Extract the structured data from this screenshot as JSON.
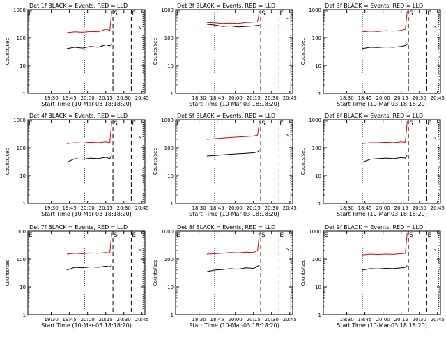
{
  "figure": {
    "rate_label": "Counts/sec",
    "start_marker": "S",
    "end_marker": "E",
    "colors": {
      "events": "#000000",
      "lld": "#e00000",
      "axes": "#000000",
      "background": "#ffffff"
    }
  },
  "chart_data": [
    {
      "type": "line",
      "title": "Det 1f BLACK = Events, RED = LLD",
      "xlabel": "Start Time (10-Mar-03 18:18:20)",
      "ylabel": "Counts/sec",
      "yscale": "log",
      "ylim": [
        1,
        1000
      ],
      "yticks": [
        "1",
        "10",
        "100",
        "1000"
      ],
      "xticks": [
        "19:30",
        "19:45",
        "20:00",
        "20:15",
        "20:30",
        "20:45"
      ],
      "xlim": [
        18.0,
        21.0
      ],
      "x": [
        19.0,
        19.2,
        19.4,
        19.6,
        19.8,
        20.0,
        20.1,
        20.15,
        20.2,
        20.22,
        20.25,
        20.3,
        20.38,
        20.5,
        20.55,
        20.6,
        20.7,
        20.75,
        20.8,
        20.85,
        20.9
      ],
      "series": [
        {
          "name": "Events",
          "color": "#000000",
          "values": [
            40,
            45,
            42,
            48,
            45,
            55,
            50,
            60,
            null,
            null,
            null,
            null,
            null,
            null,
            null,
            null,
            null,
            null,
            null,
            null,
            null
          ]
        },
        {
          "name": "LLD",
          "color": "#e00000",
          "values": [
            150,
            160,
            155,
            165,
            160,
            200,
            180,
            900,
            null,
            null,
            null,
            null,
            null,
            null,
            null,
            null,
            null,
            null,
            null,
            250,
            200
          ]
        }
      ],
      "markers": {
        "dotted": 19.45,
        "dashed": [
          20.18,
          20.65
        ],
        "dotted_end": 20.95
      }
    },
    {
      "type": "line",
      "title": "Det 2f BLACK = Events, RED = LLD",
      "xlabel": "Start Time (10-Mar-03 18:18:20)",
      "ylabel": "Counts/sec",
      "yscale": "log",
      "ylim": [
        1,
        1000
      ],
      "yticks": [
        "1",
        "10",
        "100",
        "1000"
      ],
      "xticks": [
        "18:30",
        "18:45",
        "20:00",
        "20:15",
        "20:30",
        "20:45"
      ],
      "xlim": [
        18.0,
        21.0
      ],
      "x": [
        18.8,
        19.0,
        19.2,
        19.4,
        19.6,
        19.8,
        20.0,
        20.1,
        20.15,
        20.2,
        20.22,
        20.25,
        20.3,
        20.38,
        20.5,
        20.55,
        20.6,
        20.7,
        20.75,
        20.8,
        20.85,
        20.9
      ],
      "series": [
        {
          "name": "Events",
          "color": "#000000",
          "values": [
            300,
            280,
            250,
            260,
            240,
            250,
            260,
            270,
            280,
            null,
            null,
            null,
            null,
            null,
            null,
            null,
            null,
            null,
            null,
            null,
            null,
            null
          ]
        },
        {
          "name": "LLD",
          "color": "#e00000",
          "values": [
            350,
            340,
            320,
            330,
            320,
            350,
            360,
            370,
            900,
            null,
            null,
            null,
            null,
            null,
            null,
            null,
            null,
            null,
            null,
            null,
            500,
            450
          ]
        }
      ],
      "markers": {
        "dotted": 19.0,
        "dashed": [
          20.18,
          20.65
        ],
        "dotted_end": 20.95
      }
    },
    {
      "type": "line",
      "title": "Det 3f BLACK = Events, RED = LLD",
      "xlabel": "Start Time (10-Mar-03 18:18:20)",
      "ylabel": "Counts/sec",
      "yscale": "log",
      "ylim": [
        1,
        1000
      ],
      "yticks": [
        "1",
        "10",
        "100",
        "1000"
      ],
      "xticks": [
        "18:30",
        "18:45",
        "20:00",
        "20:15",
        "20:30",
        "20:45"
      ],
      "xlim": [
        18.0,
        21.0
      ],
      "x": [
        19.0,
        19.2,
        19.4,
        19.6,
        19.8,
        20.0,
        20.1,
        20.15,
        20.2,
        20.22,
        20.25,
        20.3,
        20.38,
        20.5,
        20.55,
        20.6,
        20.7,
        20.75,
        20.8,
        20.85,
        20.9
      ],
      "series": [
        {
          "name": "Events",
          "color": "#000000",
          "values": [
            40,
            45,
            44,
            46,
            45,
            48,
            52,
            60,
            null,
            null,
            null,
            null,
            null,
            null,
            null,
            null,
            null,
            null,
            null,
            null,
            null
          ]
        },
        {
          "name": "LLD",
          "color": "#e00000",
          "values": [
            160,
            170,
            165,
            175,
            170,
            180,
            200,
            900,
            null,
            null,
            null,
            null,
            null,
            null,
            null,
            null,
            null,
            null,
            null,
            250,
            220
          ]
        }
      ],
      "markers": {
        "dotted": 19.0,
        "dashed": [
          20.18,
          20.65
        ],
        "dotted_end": 20.95
      }
    },
    {
      "type": "line",
      "title": "Det 4f BLACK = Events, RED = LLD",
      "xlabel": "Start Time (10-Mar-03 18:18:20)",
      "ylabel": "Counts/sec",
      "yscale": "log",
      "ylim": [
        1,
        1000
      ],
      "yticks": [
        "1",
        "10",
        "100",
        "1000"
      ],
      "xticks": [
        "19:30",
        "19:45",
        "20:00",
        "20:15",
        "20:30",
        "20:45"
      ],
      "xlim": [
        18.0,
        21.0
      ],
      "x": [
        19.0,
        19.2,
        19.4,
        19.6,
        19.8,
        20.0,
        20.1,
        20.15,
        20.2,
        20.22,
        20.25,
        20.3,
        20.38,
        20.5,
        20.55,
        20.6,
        20.7,
        20.75,
        20.8,
        20.85,
        20.9
      ],
      "series": [
        {
          "name": "Events",
          "color": "#000000",
          "values": [
            30,
            40,
            38,
            42,
            40,
            45,
            40,
            55,
            null,
            null,
            null,
            null,
            null,
            null,
            null,
            null,
            null,
            null,
            null,
            null,
            null
          ]
        },
        {
          "name": "LLD",
          "color": "#e00000",
          "values": [
            140,
            150,
            145,
            155,
            150,
            160,
            150,
            900,
            null,
            null,
            null,
            null,
            null,
            null,
            null,
            null,
            null,
            null,
            null,
            250,
            220
          ]
        }
      ],
      "markers": {
        "dotted": 19.45,
        "dashed": [
          20.18,
          20.65
        ],
        "dotted_end": 20.95
      }
    },
    {
      "type": "line",
      "title": "Det 5f BLACK = Events, RED = LLD",
      "xlabel": "Start Time (10-Mar-03 18:18:20)",
      "ylabel": "Counts/sec",
      "yscale": "log",
      "ylim": [
        1,
        1000
      ],
      "yticks": [
        "1",
        "10",
        "100",
        "1000"
      ],
      "xticks": [
        "18:30",
        "18:45",
        "20:00",
        "20:15",
        "20:30",
        "20:45"
      ],
      "xlim": [
        18.0,
        21.0
      ],
      "x": [
        18.8,
        19.0,
        19.2,
        19.4,
        19.6,
        19.8,
        20.0,
        20.1,
        20.15,
        20.2,
        20.22,
        20.25,
        20.3,
        20.38,
        20.5,
        20.55,
        20.6,
        20.7,
        20.75,
        20.8,
        20.85,
        20.9
      ],
      "series": [
        {
          "name": "Events",
          "color": "#000000",
          "values": [
            50,
            52,
            55,
            58,
            60,
            62,
            65,
            70,
            80,
            null,
            null,
            null,
            null,
            null,
            null,
            null,
            null,
            null,
            null,
            null,
            null,
            null
          ]
        },
        {
          "name": "LLD",
          "color": "#e00000",
          "values": [
            200,
            210,
            220,
            230,
            240,
            250,
            260,
            280,
            900,
            null,
            null,
            null,
            null,
            null,
            null,
            null,
            null,
            null,
            null,
            null,
            300,
            250
          ]
        }
      ],
      "markers": {
        "dotted": 19.0,
        "dashed": [
          20.18,
          20.65
        ],
        "dotted_end": 20.95
      }
    },
    {
      "type": "line",
      "title": "Det 6f BLACK = Events, RED = LLD",
      "xlabel": "Start Time (10-Mar-03 18:18:20)",
      "ylabel": "Counts/sec",
      "yscale": "log",
      "ylim": [
        1,
        1000
      ],
      "yticks": [
        "1",
        "10",
        "100",
        "1000"
      ],
      "xticks": [
        "18:30",
        "18:45",
        "20:00",
        "20:15",
        "20:30",
        "20:45"
      ],
      "xlim": [
        18.0,
        21.0
      ],
      "x": [
        19.0,
        19.2,
        19.4,
        19.6,
        19.8,
        20.0,
        20.1,
        20.15,
        20.2,
        20.22,
        20.25,
        20.3,
        20.38,
        20.5,
        20.55,
        20.6,
        20.7,
        20.75,
        20.8,
        20.85,
        20.9
      ],
      "series": [
        {
          "name": "Events",
          "color": "#000000",
          "values": [
            30,
            38,
            40,
            42,
            40,
            44,
            42,
            55,
            null,
            null,
            null,
            null,
            null,
            null,
            null,
            null,
            null,
            null,
            null,
            null,
            null
          ]
        },
        {
          "name": "LLD",
          "color": "#e00000",
          "values": [
            140,
            150,
            150,
            155,
            150,
            160,
            155,
            900,
            null,
            null,
            null,
            null,
            null,
            null,
            null,
            null,
            null,
            null,
            null,
            230,
            200
          ]
        }
      ],
      "markers": {
        "dotted": 19.0,
        "dashed": [
          20.18,
          20.65
        ],
        "dotted_end": 20.95
      }
    },
    {
      "type": "line",
      "title": "Det 7f BLACK = Events, RED = LLD",
      "xlabel": "Start Time (10-Mar-03 18:18:20)",
      "ylabel": "Counts/sec",
      "yscale": "log",
      "ylim": [
        1,
        1000
      ],
      "yticks": [
        "1",
        "10",
        "100",
        "1000"
      ],
      "xticks": [
        "19:30",
        "19:45",
        "20:00",
        "20:15",
        "20:30",
        "20:45"
      ],
      "xlim": [
        18.0,
        21.0
      ],
      "x": [
        19.0,
        19.2,
        19.4,
        19.6,
        19.8,
        20.0,
        20.1,
        20.15,
        20.2,
        20.22,
        20.25,
        20.3,
        20.38,
        20.5,
        20.55,
        20.6,
        20.7,
        20.75,
        20.8,
        20.85,
        20.9
      ],
      "series": [
        {
          "name": "Events",
          "color": "#000000",
          "values": [
            40,
            50,
            48,
            52,
            50,
            55,
            52,
            60,
            null,
            null,
            null,
            null,
            null,
            null,
            null,
            null,
            null,
            null,
            null,
            null,
            null
          ]
        },
        {
          "name": "LLD",
          "color": "#e00000",
          "values": [
            150,
            160,
            155,
            165,
            160,
            170,
            165,
            900,
            null,
            null,
            null,
            null,
            null,
            null,
            null,
            null,
            null,
            null,
            null,
            230,
            200
          ]
        }
      ],
      "markers": {
        "dotted": 19.45,
        "dashed": [
          20.18,
          20.65
        ],
        "dotted_end": 20.95
      }
    },
    {
      "type": "line",
      "title": "Det 8f BLACK = Events, RED = LLD",
      "xlabel": "Start Time (10-Mar-03 18:18:20)",
      "ylabel": "Counts/sec",
      "yscale": "log",
      "ylim": [
        1,
        1000
      ],
      "yticks": [
        "1",
        "10",
        "100",
        "1000"
      ],
      "xticks": [
        "18:30",
        "18:45",
        "20:00",
        "20:15",
        "20:30",
        "20:45"
      ],
      "xlim": [
        18.0,
        21.0
      ],
      "x": [
        18.8,
        19.0,
        19.2,
        19.4,
        19.6,
        19.8,
        20.0,
        20.1,
        20.15,
        20.2,
        20.22,
        20.25,
        20.3,
        20.38,
        20.5,
        20.55,
        20.6,
        20.7,
        20.75,
        20.8,
        20.85,
        20.9
      ],
      "series": [
        {
          "name": "Events",
          "color": "#000000",
          "values": [
            35,
            40,
            42,
            45,
            43,
            48,
            46,
            55,
            60,
            null,
            null,
            null,
            null,
            null,
            null,
            null,
            null,
            null,
            null,
            null,
            null,
            null
          ]
        },
        {
          "name": "LLD",
          "color": "#e00000",
          "values": [
            150,
            155,
            160,
            170,
            165,
            175,
            170,
            200,
            900,
            null,
            null,
            null,
            null,
            null,
            null,
            null,
            null,
            null,
            null,
            null,
            250,
            200
          ]
        }
      ],
      "markers": {
        "dotted": 19.0,
        "dashed": [
          20.18,
          20.65
        ],
        "dotted_end": 20.95
      }
    },
    {
      "type": "line",
      "title": "Det 9f BLACK = Events, RED = LLD",
      "xlabel": "Start Time (10-Mar-03 18:18:20)",
      "ylabel": "Counts/sec",
      "yscale": "log",
      "ylim": [
        1,
        1000
      ],
      "yticks": [
        "1",
        "10",
        "100",
        "1000"
      ],
      "xticks": [
        "18:30",
        "18:45",
        "20:00",
        "20:15",
        "20:30",
        "20:45"
      ],
      "xlim": [
        18.0,
        21.0
      ],
      "x": [
        19.0,
        19.2,
        19.4,
        19.6,
        19.8,
        20.0,
        20.1,
        20.15,
        20.2,
        20.22,
        20.25,
        20.3,
        20.38,
        20.5,
        20.55,
        20.6,
        20.7,
        20.75,
        20.8,
        20.85,
        20.9
      ],
      "series": [
        {
          "name": "Events",
          "color": "#000000",
          "values": [
            40,
            45,
            44,
            46,
            45,
            48,
            50,
            58,
            null,
            null,
            null,
            null,
            null,
            null,
            null,
            null,
            null,
            null,
            null,
            null,
            null
          ]
        },
        {
          "name": "LLD",
          "color": "#e00000",
          "values": [
            140,
            150,
            145,
            150,
            148,
            155,
            160,
            900,
            null,
            null,
            null,
            null,
            null,
            null,
            null,
            null,
            null,
            null,
            null,
            220,
            190
          ]
        }
      ],
      "markers": {
        "dotted": 19.0,
        "dashed": [
          20.18,
          20.65
        ],
        "dotted_end": 20.95
      }
    }
  ]
}
